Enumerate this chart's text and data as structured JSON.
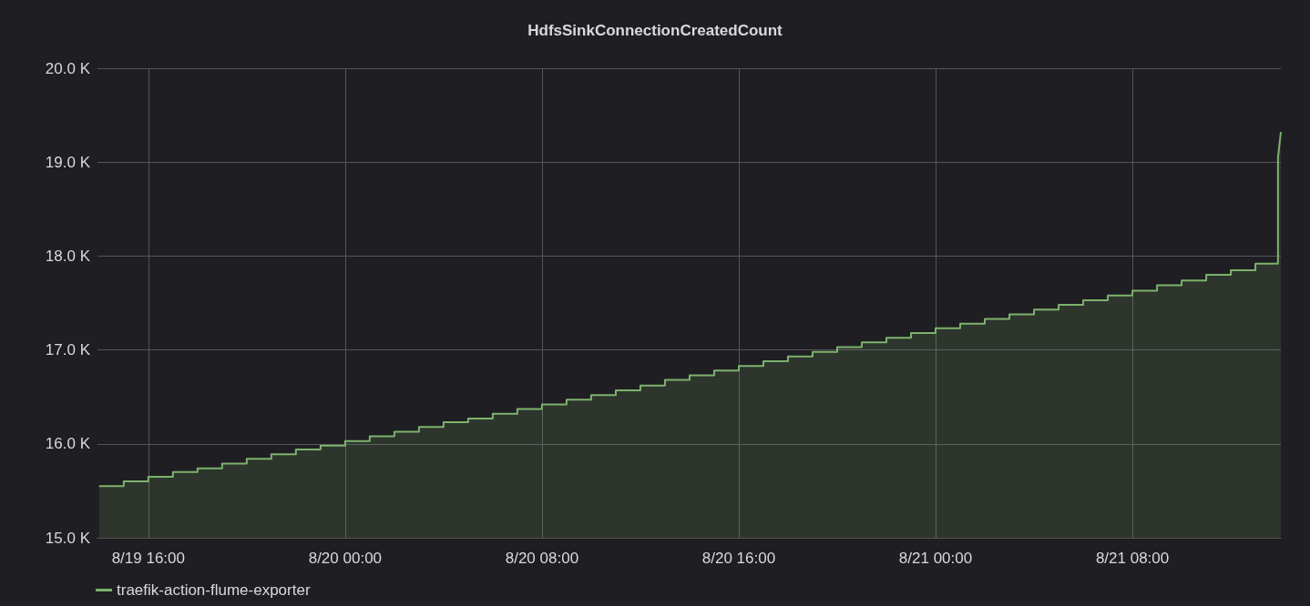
{
  "chart_data": {
    "type": "area",
    "title": "HdfsSinkConnectionCreatedCount",
    "x": [
      "--08-19T14:00",
      "--08-19T15:00",
      "--08-19T15:00",
      "--08-19T16:00",
      "--08-19T16:00",
      "--08-19T17:00",
      "--08-19T17:00",
      "--08-19T18:00",
      "--08-19T18:00",
      "--08-19T19:00",
      "--08-19T19:00",
      "--08-19T20:00",
      "--08-19T20:00",
      "--08-19T21:00",
      "--08-19T21:00",
      "--08-19T22:00",
      "--08-19T22:00",
      "--08-19T23:00",
      "--08-19T23:00",
      "--08-20T00:00",
      "--08-20T00:00",
      "--08-20T01:00",
      "--08-20T01:00",
      "--08-20T02:00",
      "--08-20T02:00",
      "--08-20T03:00",
      "--08-20T03:00",
      "--08-20T04:00",
      "--08-20T04:00",
      "--08-20T05:00",
      "--08-20T05:00",
      "--08-20T06:00",
      "--08-20T06:00",
      "--08-20T07:00",
      "--08-20T07:00",
      "--08-20T08:00",
      "--08-20T08:00",
      "--08-20T09:00",
      "--08-20T09:00",
      "--08-20T10:00",
      "--08-20T10:00",
      "--08-20T11:00",
      "--08-20T11:00",
      "--08-20T12:00",
      "--08-20T12:00",
      "--08-20T13:00",
      "--08-20T13:00",
      "--08-20T14:00",
      "--08-20T14:00",
      "--08-20T15:00",
      "--08-20T15:00",
      "--08-20T16:00",
      "--08-20T16:00",
      "--08-20T17:00",
      "--08-20T17:00",
      "--08-20T18:00",
      "--08-20T18:00",
      "--08-20T19:00",
      "--08-20T19:00",
      "--08-20T20:00",
      "--08-20T20:00",
      "--08-20T21:00",
      "--08-20T21:00",
      "--08-20T22:00",
      "--08-20T22:00",
      "--08-20T23:00",
      "--08-20T23:00",
      "--08-21T00:00",
      "--08-21T00:00",
      "--08-21T01:00",
      "--08-21T01:00",
      "--08-21T02:00",
      "--08-21T02:00",
      "--08-21T03:00",
      "--08-21T03:00",
      "--08-21T04:00",
      "--08-21T04:00",
      "--08-21T05:00",
      "--08-21T05:00",
      "--08-21T06:00",
      "--08-21T06:00",
      "--08-21T07:00",
      "--08-21T07:00",
      "--08-21T08:00",
      "--08-21T08:00",
      "--08-21T09:00",
      "--08-21T09:00",
      "--08-21T10:00",
      "--08-21T10:00",
      "--08-21T11:00",
      "--08-21T11:00",
      "--08-21T12:00",
      "--08-21T12:00",
      "--08-21T13:00",
      "--08-21T13:00",
      "--08-21T13:55",
      "--08-21T13:55",
      "--08-21T14:02"
    ],
    "series": [
      {
        "name": "traefik-action-flume-exporter",
        "color": "#7eb26d",
        "values": [
          15550,
          15550,
          15600,
          15600,
          15650,
          15650,
          15700,
          15700,
          15740,
          15740,
          15790,
          15790,
          15840,
          15840,
          15890,
          15890,
          15940,
          15940,
          15980,
          15980,
          16030,
          16030,
          16080,
          16080,
          16130,
          16130,
          16180,
          16180,
          16230,
          16230,
          16270,
          16270,
          16320,
          16320,
          16370,
          16370,
          16420,
          16420,
          16470,
          16470,
          16520,
          16520,
          16570,
          16570,
          16620,
          16620,
          16680,
          16680,
          16730,
          16730,
          16780,
          16780,
          16830,
          16830,
          16880,
          16880,
          16930,
          16930,
          16980,
          16980,
          17030,
          17030,
          17080,
          17080,
          17130,
          17130,
          17180,
          17180,
          17230,
          17230,
          17280,
          17280,
          17330,
          17330,
          17380,
          17380,
          17430,
          17430,
          17480,
          17480,
          17530,
          17530,
          17580,
          17580,
          17630,
          17630,
          17690,
          17690,
          17740,
          17740,
          17800,
          17800,
          17850,
          17850,
          17920,
          17920,
          19050,
          19320
        ]
      }
    ],
    "xlim": [
      "--08-19T13:56",
      "--08-21T14:02"
    ],
    "xticks": [
      {
        "value": "--08-19T16:00",
        "label": "8/19 16:00"
      },
      {
        "value": "--08-20T00:00",
        "label": "8/20 00:00"
      },
      {
        "value": "--08-20T08:00",
        "label": "8/20 08:00"
      },
      {
        "value": "--08-20T16:00",
        "label": "8/20 16:00"
      },
      {
        "value": "--08-21T00:00",
        "label": "8/21 00:00"
      },
      {
        "value": "--08-21T08:00",
        "label": "8/21 08:00"
      }
    ],
    "ylim": [
      15000,
      20000
    ],
    "yticks": [
      {
        "value": 15000,
        "label": "15.0 K"
      },
      {
        "value": 16000,
        "label": "16.0 K"
      },
      {
        "value": 17000,
        "label": "17.0 K"
      },
      {
        "value": 18000,
        "label": "18.0 K"
      },
      {
        "value": 19000,
        "label": "19.0 K"
      },
      {
        "value": 20000,
        "label": "20.0 K"
      }
    ],
    "grid": true,
    "legend": "bottom left",
    "line_style": "solid"
  }
}
